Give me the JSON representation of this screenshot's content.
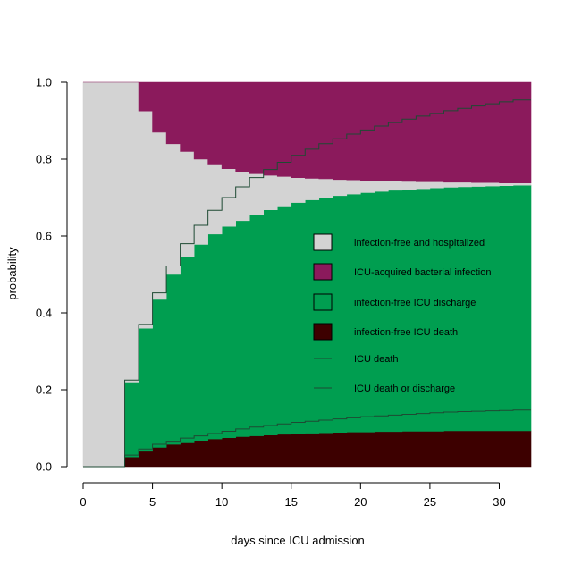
{
  "chart_data": {
    "type": "area",
    "title": "",
    "xlabel": "days since ICU admission",
    "ylabel": "probability",
    "xlim": [
      0,
      31
    ],
    "ylim": [
      0,
      1
    ],
    "xticks": [
      0,
      5,
      10,
      15,
      20,
      25,
      30
    ],
    "yticks": [
      0.0,
      0.2,
      0.4,
      0.6,
      0.8,
      1.0
    ],
    "ytick_labels": [
      "0.0",
      "0.2",
      "0.4",
      "0.6",
      "0.8",
      "1.0"
    ],
    "grid": false,
    "legend_position": "right",
    "x": [
      0,
      1,
      2,
      3,
      4,
      5,
      6,
      7,
      8,
      9,
      10,
      11,
      12,
      13,
      14,
      15,
      16,
      17,
      18,
      19,
      20,
      21,
      22,
      23,
      24,
      25,
      26,
      27,
      28,
      29,
      30,
      31
    ],
    "boundaries": {
      "icu_death": [
        0,
        0,
        0,
        0.025,
        0.04,
        0.05,
        0.058,
        0.064,
        0.068,
        0.072,
        0.075,
        0.078,
        0.08,
        0.082,
        0.084,
        0.086,
        0.087,
        0.088,
        0.089,
        0.09,
        0.09,
        0.091,
        0.091,
        0.092,
        0.092,
        0.092,
        0.093,
        0.093,
        0.093,
        0.093,
        0.093,
        0.093
      ],
      "icu_death_or_discharge": [
        0,
        0,
        0,
        0.22,
        0.36,
        0.435,
        0.5,
        0.545,
        0.578,
        0.605,
        0.625,
        0.64,
        0.655,
        0.668,
        0.678,
        0.687,
        0.694,
        0.7,
        0.705,
        0.709,
        0.713,
        0.716,
        0.719,
        0.721,
        0.723,
        0.725,
        0.727,
        0.728,
        0.729,
        0.73,
        0.731,
        0.732
      ],
      "hospitalized_upper": [
        1,
        1,
        1,
        1,
        0.925,
        0.87,
        0.84,
        0.82,
        0.8,
        0.785,
        0.775,
        0.768,
        0.762,
        0.758,
        0.755,
        0.752,
        0.75,
        0.749,
        0.747,
        0.746,
        0.745,
        0.744,
        0.743,
        0.742,
        0.741,
        0.741,
        0.74,
        0.74,
        0.739,
        0.739,
        0.738,
        0.738
      ]
    },
    "lines": {
      "icu_death_line": [
        0,
        0,
        0,
        0.03,
        0.046,
        0.058,
        0.066,
        0.074,
        0.08,
        0.086,
        0.092,
        0.098,
        0.103,
        0.107,
        0.111,
        0.115,
        0.118,
        0.121,
        0.124,
        0.127,
        0.13,
        0.132,
        0.134,
        0.136,
        0.138,
        0.14,
        0.142,
        0.143,
        0.144,
        0.145,
        0.146,
        0.147
      ],
      "icu_death_or_discharge_line": [
        0,
        0,
        0,
        0.225,
        0.37,
        0.452,
        0.522,
        0.58,
        0.628,
        0.667,
        0.7,
        0.728,
        0.752,
        0.773,
        0.792,
        0.81,
        0.826,
        0.84,
        0.853,
        0.865,
        0.876,
        0.886,
        0.895,
        0.904,
        0.912,
        0.919,
        0.926,
        0.932,
        0.938,
        0.944,
        0.949,
        0.954
      ]
    },
    "series": [
      {
        "name": "infection-free and hospitalized",
        "color": "#d3d3d3",
        "kind": "fill"
      },
      {
        "name": "ICU-acquired bacterial infection",
        "color": "#8b1a5c",
        "kind": "fill"
      },
      {
        "name": "infection-free ICU discharge",
        "color": "#009e50",
        "kind": "fill"
      },
      {
        "name": "infection-free ICU death",
        "color": "#3d0000",
        "kind": "fill"
      },
      {
        "name": "ICU death",
        "color": "#1e4a33",
        "kind": "line"
      },
      {
        "name": "ICU death or discharge",
        "color": "#1e4a33",
        "kind": "line"
      }
    ]
  }
}
